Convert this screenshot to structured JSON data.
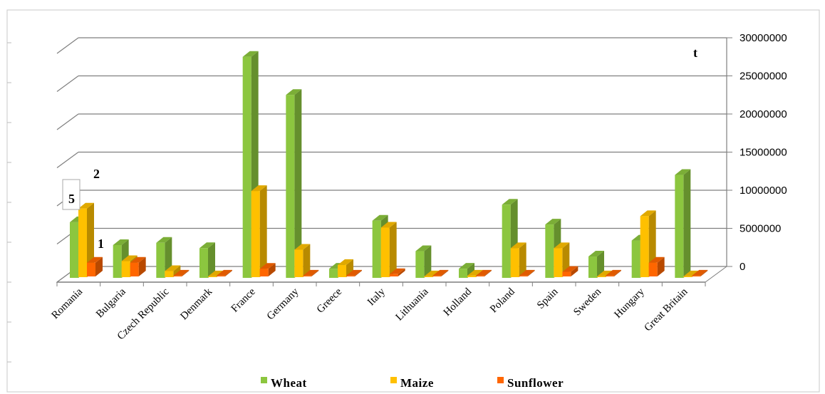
{
  "chart_data": {
    "type": "bar",
    "subtype": "3d-clustered-column",
    "unit_label": "t",
    "categories": [
      "Romania",
      "Bulgaria",
      "Czech Republic",
      "Denmark",
      "France",
      "Germany",
      "Greece",
      "Italy",
      "Lithuania",
      "Holland",
      "Poland",
      "Spain",
      "Sweden",
      "Hungary",
      "Great Britain"
    ],
    "series": [
      {
        "name": "Wheat",
        "color": "#8cc63f",
        "values": [
          7300000,
          4300000,
          4600000,
          3900000,
          29000000,
          24000000,
          1200000,
          7500000,
          3500000,
          1200000,
          9600000,
          7000000,
          2800000,
          4900000,
          13500000
        ]
      },
      {
        "name": "Maize",
        "color": "#ffc000",
        "values": [
          9000000,
          2100000,
          800000,
          100000,
          11300000,
          3600000,
          1600000,
          6500000,
          100000,
          200000,
          3800000,
          3800000,
          100000,
          8000000,
          100000
        ]
      },
      {
        "name": "Sunflower",
        "color": "#ff6600",
        "values": [
          1800000,
          1800000,
          100000,
          100000,
          1000000,
          100000,
          100000,
          300000,
          100000,
          100000,
          100000,
          600000,
          100000,
          1800000,
          100000
        ]
      }
    ],
    "y_axis": {
      "min": 0,
      "max": 30000000,
      "ticks": [
        "0",
        "5000000",
        "10000000",
        "15000000",
        "20000000",
        "25000000",
        "30000000"
      ],
      "position": "right"
    },
    "annotations": [
      "5",
      "2",
      "1"
    ],
    "grid": true,
    "legend_position": "bottom"
  }
}
